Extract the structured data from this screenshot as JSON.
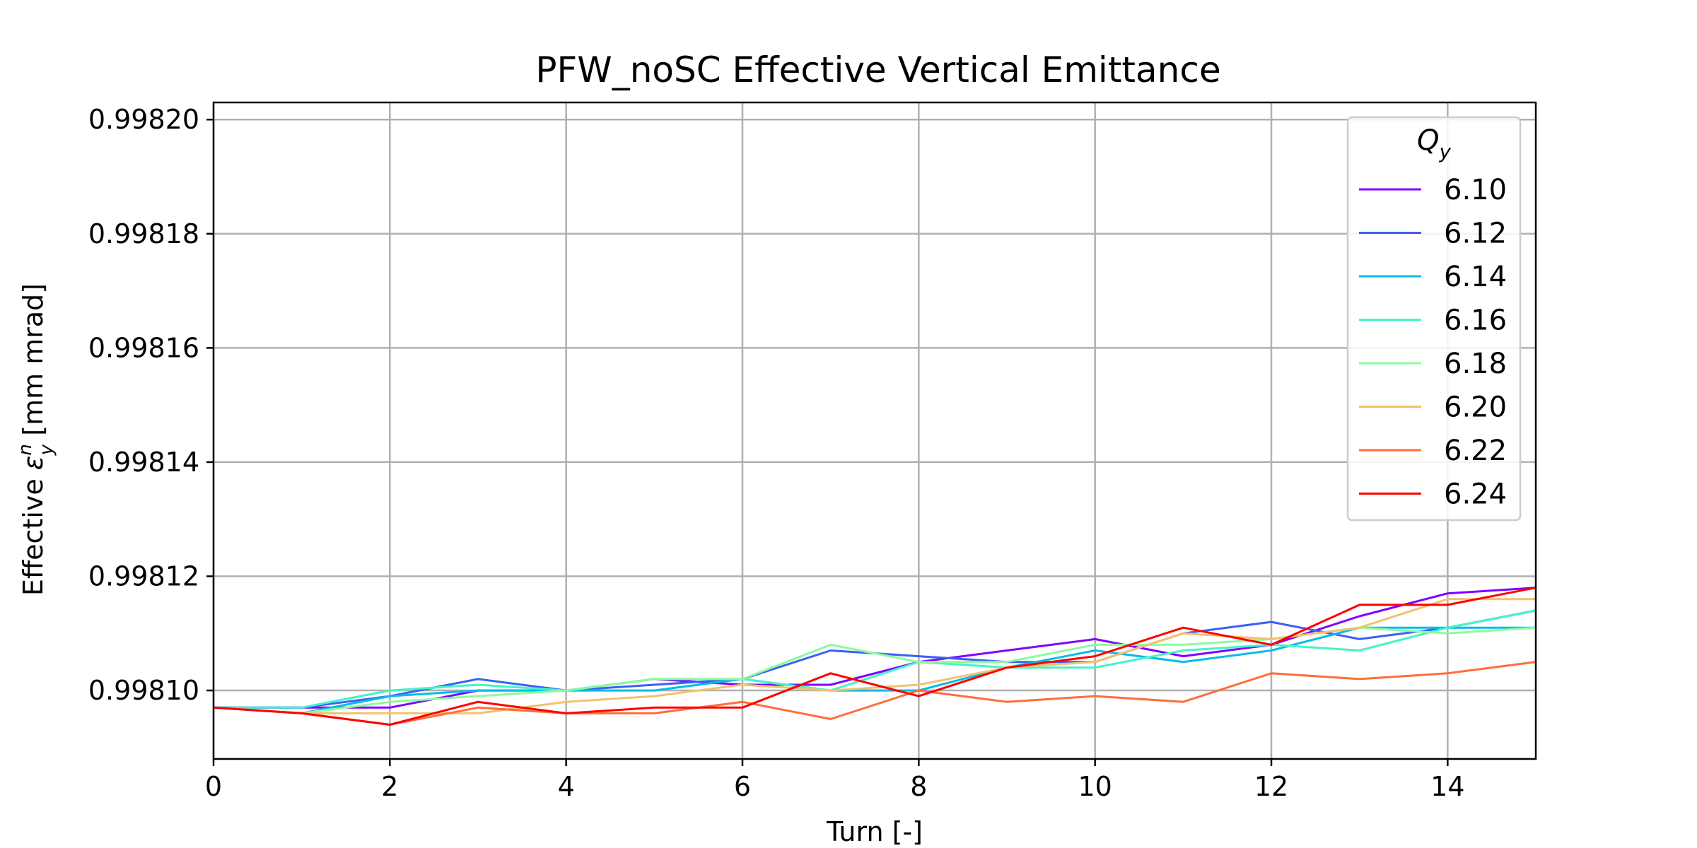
{
  "chart_data": {
    "type": "line",
    "title": "PFW_noSC Effective Vertical Emittance",
    "xlabel": "Turn [-]",
    "ylabel": {
      "prefix": "Effective ",
      "symbol": "ε",
      "sup": "n",
      "sub": "y",
      "suffix": " [mm mrad]"
    },
    "xlim": [
      0,
      15
    ],
    "ylim": [
      0.998088,
      0.998203
    ],
    "xticks": [
      0,
      2,
      4,
      6,
      8,
      10,
      12,
      14
    ],
    "xtick_labels": [
      "0",
      "2",
      "4",
      "6",
      "8",
      "10",
      "12",
      "14"
    ],
    "yticks": [
      0.9981,
      0.99812,
      0.99814,
      0.99816,
      0.99818,
      0.9982
    ],
    "ytick_labels": [
      "0.99810",
      "0.99812",
      "0.99814",
      "0.99816",
      "0.99818",
      "0.99820"
    ],
    "grid": true,
    "legend": {
      "title_main": "Q",
      "title_sub": "y",
      "placement": "top-right"
    },
    "x": [
      0,
      1,
      2,
      3,
      4,
      5,
      6,
      7,
      8,
      9,
      10,
      11,
      12,
      13,
      14,
      15
    ],
    "series": [
      {
        "name": "6.10",
        "color": "#8000ff",
        "values": [
          0.998097,
          0.998097,
          0.998097,
          0.9981,
          0.9981,
          0.998102,
          0.998101,
          0.998101,
          0.998105,
          0.998107,
          0.998109,
          0.998106,
          0.998108,
          0.998113,
          0.998117,
          0.998118
        ]
      },
      {
        "name": "6.12",
        "color": "#3d5ff6",
        "values": [
          0.998097,
          0.998097,
          0.998099,
          0.998102,
          0.9981,
          0.998101,
          0.998102,
          0.998107,
          0.998106,
          0.998105,
          0.998105,
          0.99811,
          0.998112,
          0.998109,
          0.998111,
          0.998114
        ]
      },
      {
        "name": "6.14",
        "color": "#07bbe9",
        "values": [
          0.998097,
          0.998096,
          0.998099,
          0.9981,
          0.9981,
          0.9981,
          0.998102,
          0.9981,
          0.9981,
          0.998104,
          0.998107,
          0.998105,
          0.998107,
          0.998111,
          0.998111,
          0.998111
        ]
      },
      {
        "name": "6.16",
        "color": "#44f4c6",
        "values": [
          0.998097,
          0.998097,
          0.9981,
          0.998101,
          0.9981,
          0.998102,
          0.998102,
          0.9981,
          0.998105,
          0.998104,
          0.998104,
          0.998107,
          0.998108,
          0.998107,
          0.998111,
          0.998114
        ]
      },
      {
        "name": "6.18",
        "color": "#8bfb9c",
        "values": [
          0.998097,
          0.998096,
          0.998098,
          0.998099,
          0.9981,
          0.998102,
          0.998102,
          0.998108,
          0.998105,
          0.998105,
          0.998108,
          0.998108,
          0.998109,
          0.998111,
          0.99811,
          0.998111
        ]
      },
      {
        "name": "6.20",
        "color": "#f3c16e",
        "values": [
          0.998097,
          0.998096,
          0.998096,
          0.998096,
          0.998098,
          0.998099,
          0.998101,
          0.9981,
          0.998101,
          0.998104,
          0.998105,
          0.99811,
          0.998109,
          0.998111,
          0.998116,
          0.998116
        ]
      },
      {
        "name": "6.22",
        "color": "#ff6e3b",
        "values": [
          0.998097,
          0.998096,
          0.998094,
          0.998097,
          0.998096,
          0.998096,
          0.998098,
          0.998095,
          0.9981,
          0.998098,
          0.998099,
          0.998098,
          0.998103,
          0.998102,
          0.998103,
          0.998105
        ]
      },
      {
        "name": "6.24",
        "color": "#ff0000",
        "values": [
          0.998097,
          0.998096,
          0.998094,
          0.998098,
          0.998096,
          0.998097,
          0.998097,
          0.998103,
          0.998099,
          0.998104,
          0.998106,
          0.998111,
          0.998108,
          0.998115,
          0.998115,
          0.998118
        ]
      }
    ]
  }
}
